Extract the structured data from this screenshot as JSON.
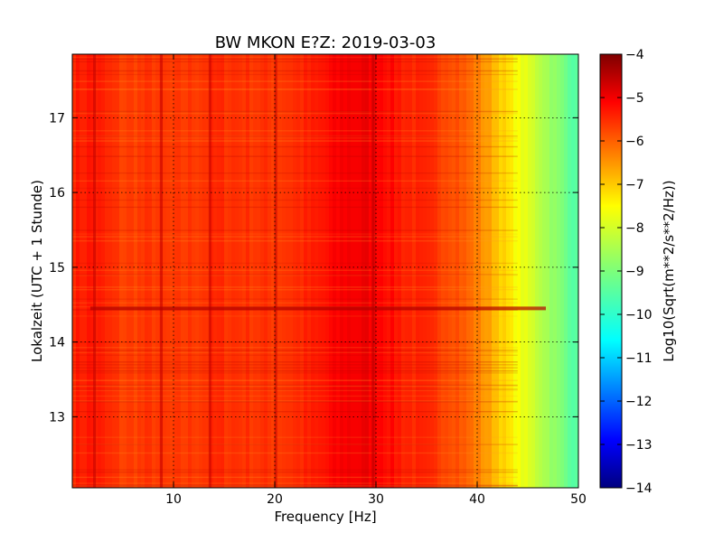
{
  "chart_data": {
    "type": "heatmap",
    "title": "BW MKON E?Z: 2019-03-03",
    "xlabel": "Frequency [Hz]",
    "ylabel": "Lokalzeit (UTC + 1 Stunde)",
    "xlim": [
      0,
      50
    ],
    "ylim": [
      17.85,
      12.05
    ],
    "x_ticks": [
      10,
      20,
      30,
      40,
      50
    ],
    "x_tick_labels": [
      "10",
      "20",
      "30",
      "40",
      "50"
    ],
    "y_ticks": [
      13,
      14,
      15,
      16,
      17
    ],
    "y_tick_labels": [
      "13",
      "14",
      "15",
      "16",
      "17"
    ],
    "grid": true,
    "colorbar": {
      "label": "Log10(Sqrt(m**2/s**2/Hz))",
      "range": [
        -14,
        -4
      ],
      "ticks": [
        -4,
        -5,
        -6,
        -7,
        -8,
        -9,
        -10,
        -11,
        -12,
        -13,
        -14
      ],
      "tick_labels": [
        "−4",
        "−5",
        "−6",
        "−7",
        "−8",
        "−9",
        "−10",
        "−11",
        "−12",
        "−13",
        "−14"
      ],
      "colormap": "jet"
    },
    "profile_by_frequency": {
      "frequency_hz": [
        0,
        2,
        5,
        8,
        10,
        14,
        20,
        24,
        27,
        30,
        33,
        36,
        38,
        40,
        42,
        44,
        46,
        48,
        50
      ],
      "log10_amplitude": [
        -5.4,
        -5.3,
        -5.7,
        -5.6,
        -5.7,
        -5.5,
        -5.6,
        -5.4,
        -5.0,
        -5.0,
        -5.4,
        -5.6,
        -5.8,
        -6.3,
        -6.9,
        -7.6,
        -8.2,
        -8.9,
        -9.6
      ]
    },
    "vertical_lines_hz": [
      2.2,
      8.8,
      13.6,
      20.1,
      29.7
    ],
    "horizontal_band_hour": 14.45
  }
}
